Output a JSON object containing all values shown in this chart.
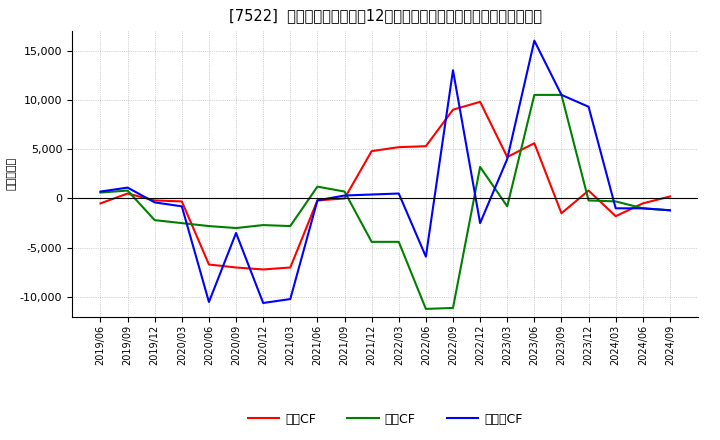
{
  "title": "[7522]  キャッシュフローの12か月移動合計の対前年同期増減額の推移",
  "ylabel": "（百万円）",
  "background_color": "#ffffff",
  "plot_bg_color": "#ffffff",
  "grid_color": "#aaaaaa",
  "dates": [
    "2019/06",
    "2019/09",
    "2019/12",
    "2020/03",
    "2020/06",
    "2020/09",
    "2020/12",
    "2021/03",
    "2021/06",
    "2021/09",
    "2021/12",
    "2022/03",
    "2022/06",
    "2022/09",
    "2022/12",
    "2023/03",
    "2023/06",
    "2023/09",
    "2023/12",
    "2024/03",
    "2024/06",
    "2024/09"
  ],
  "eigyo_cf": [
    -500,
    500,
    -200,
    -300,
    -6700,
    -7000,
    -7200,
    -7000,
    -200,
    0,
    4800,
    5200,
    5300,
    9000,
    9800,
    4200,
    5600,
    -1500,
    800,
    -1800,
    -500,
    200
  ],
  "toshi_cf": [
    600,
    800,
    -2200,
    -2500,
    -2800,
    -3000,
    -2700,
    -2800,
    1200,
    700,
    -4400,
    -4400,
    -11200,
    -11100,
    3200,
    -800,
    10500,
    10500,
    -200,
    -300,
    -1000,
    -1200
  ],
  "free_cf": [
    700,
    1100,
    -400,
    -800,
    -10500,
    -3500,
    -10600,
    -10200,
    -200,
    300,
    400,
    500,
    -5900,
    13000,
    -2500,
    4000,
    16000,
    10500,
    9300,
    -1000,
    -1000,
    -1200
  ],
  "eigyo_color": "#ff0000",
  "toshi_color": "#008000",
  "free_color": "#0000ff",
  "ylim": [
    -12000,
    17000
  ],
  "yticks": [
    -10000,
    -5000,
    0,
    5000,
    10000,
    15000
  ],
  "legend_labels": [
    "営業CF",
    "投資CF",
    "フリーCF"
  ]
}
